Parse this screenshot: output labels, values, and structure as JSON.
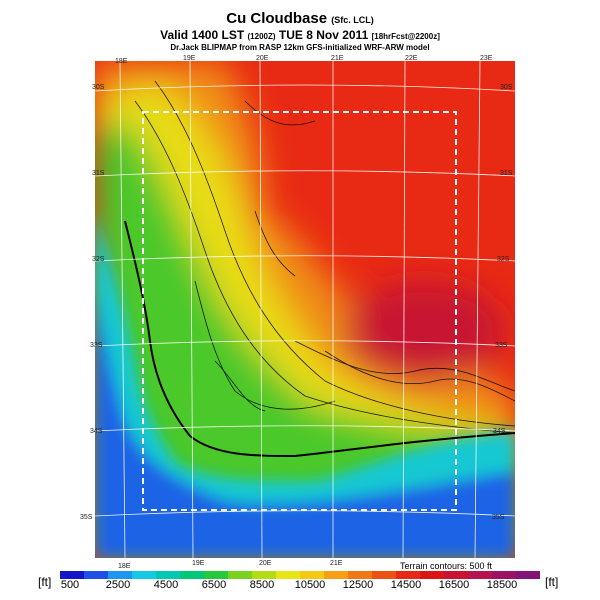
{
  "header": {
    "title": "Cu Cloudbase",
    "title_suffix": "(Sfc. LCL)",
    "valid_line": "Valid 1400 LST",
    "valid_code": "(1200Z)",
    "valid_date": "TUE 8 Nov 2011",
    "forecast": "[18hrFcst@2200z]",
    "credit": "Dr.Jack BLIPMAP from RASP 12km GFS-initialized WRF-ARW model"
  },
  "map": {
    "lon_labels_top": [
      "18E",
      "19E",
      "20E",
      "21E",
      "22E",
      "23E"
    ],
    "lon_labels_bottom": [
      "18E",
      "19E",
      "20E",
      "21E"
    ],
    "lat_labels_left": [
      "30S",
      "31S",
      "32S",
      "33S",
      "34S",
      "35S"
    ],
    "lat_labels_right": [
      "30S",
      "31S",
      "32S",
      "33S",
      "34S",
      "35S"
    ],
    "terrain_note": "Terrain contours: 500 ft"
  },
  "scale": {
    "unit_left": "[ft]",
    "unit_right": "[ft]",
    "labels": [
      "500",
      "2500",
      "4500",
      "6500",
      "8500",
      "10500",
      "12500",
      "14500",
      "16500",
      "18500"
    ],
    "colors": [
      "#1414c8",
      "#1e50e6",
      "#1e96f0",
      "#14c8e6",
      "#00c8b4",
      "#00c878",
      "#28c83c",
      "#78d21e",
      "#b4dc14",
      "#e6e614",
      "#f5c814",
      "#f5a014",
      "#f07814",
      "#eb5014",
      "#e62814",
      "#dc1414",
      "#c81432",
      "#b41450",
      "#9b1464",
      "#821478"
    ]
  }
}
